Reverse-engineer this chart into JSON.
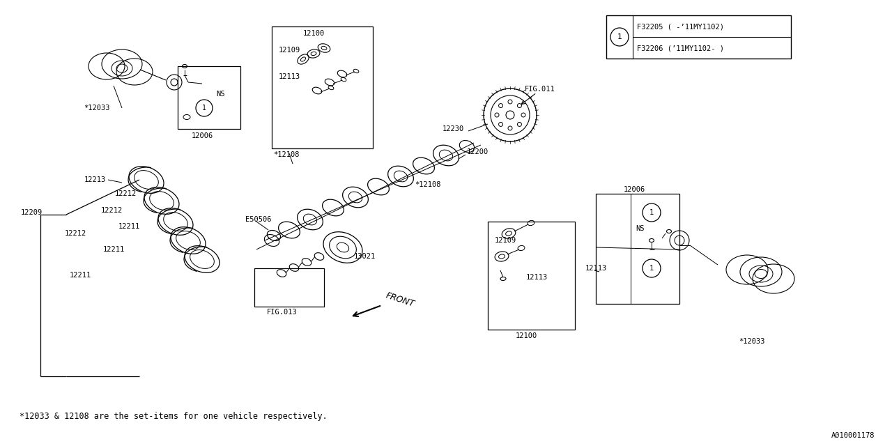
{
  "bg_color": "#ffffff",
  "line_color": "#000000",
  "footer_text": "*12033 & 12108 are the set-items for one vehicle respectively.",
  "doc_id": "A010001178",
  "legend_line1": "F32205 ( -’11MY1102)",
  "legend_line2": "F32206 (’11MY1102- )"
}
